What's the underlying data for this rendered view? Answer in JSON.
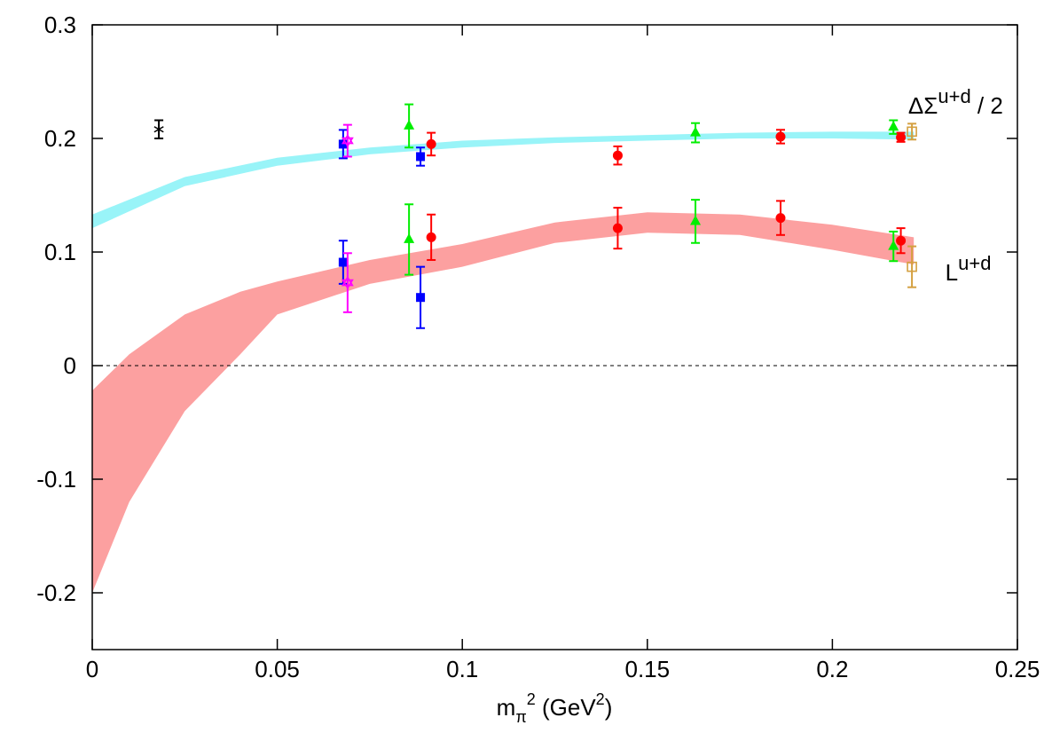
{
  "chart_data": {
    "type": "scatter",
    "title": "",
    "xlabel": {
      "base": "m",
      "sub": "π",
      "sup": "2",
      "rest": " (GeV",
      "rest_sup": "2",
      "close": ")"
    },
    "ylabel": "",
    "xlim": [
      0,
      0.25
    ],
    "ylim": [
      -0.25,
      0.3
    ],
    "xticks": [
      "0",
      "0.05",
      "0.1",
      "0.15",
      "0.2",
      "0.25"
    ],
    "xtick_values": [
      0,
      0.05,
      0.1,
      0.15,
      0.2,
      0.25
    ],
    "yticks": [
      "-0.2",
      "-0.1",
      "0",
      "0.1",
      "0.2",
      "0.3"
    ],
    "ytick_values": [
      -0.2,
      -0.1,
      0,
      0.1,
      0.2,
      0.3
    ],
    "grid": false,
    "zero_line": "dashed",
    "annotations": [
      {
        "id": "dsigma",
        "base": "ΔΣ",
        "sup": "u+d",
        "tail": " / 2",
        "x": 0.2205,
        "y": 0.222
      },
      {
        "id": "l",
        "base": "L",
        "sup": "u+d",
        "tail": "",
        "x": 0.2305,
        "y": 0.075
      }
    ],
    "bands": [
      {
        "quantity": "ΔΣ/2",
        "color": "#99f4f8",
        "x": [
          0,
          0.025,
          0.05,
          0.075,
          0.1,
          0.125,
          0.15,
          0.175,
          0.2,
          0.222
        ],
        "lower": [
          0.121,
          0.158,
          0.176,
          0.186,
          0.192,
          0.196,
          0.198,
          0.2,
          0.2,
          0.199
        ],
        "upper": [
          0.133,
          0.166,
          0.183,
          0.192,
          0.198,
          0.201,
          0.203,
          0.205,
          0.206,
          0.206
        ]
      },
      {
        "quantity": "L",
        "color": "#fca0a0",
        "x": [
          0,
          0.01,
          0.025,
          0.04,
          0.05,
          0.075,
          0.1,
          0.125,
          0.15,
          0.175,
          0.2,
          0.222
        ],
        "lower": [
          -0.2,
          -0.12,
          -0.04,
          0.01,
          0.045,
          0.072,
          0.087,
          0.108,
          0.117,
          0.115,
          0.102,
          0.089
        ],
        "upper": [
          -0.022,
          0.01,
          0.045,
          0.065,
          0.074,
          0.093,
          0.107,
          0.126,
          0.135,
          0.133,
          0.124,
          0.113
        ]
      }
    ],
    "series": [
      {
        "marker": "star",
        "color": "#000000",
        "points": [
          {
            "x": 0.018,
            "y": 0.208,
            "err": 0.008
          }
        ]
      },
      {
        "marker": "square",
        "color": "#0000ff",
        "points": [
          {
            "x": 0.0678,
            "y": 0.195,
            "err": 0.0125
          },
          {
            "x": 0.0887,
            "y": 0.184,
            "err": 0.008
          },
          {
            "x": 0.0678,
            "y": 0.091,
            "err": 0.019
          },
          {
            "x": 0.0887,
            "y": 0.06,
            "err": 0.027
          }
        ]
      },
      {
        "marker": "hexagram",
        "color": "#ff00ff",
        "points": [
          {
            "x": 0.069,
            "y": 0.198,
            "err": 0.014
          },
          {
            "x": 0.069,
            "y": 0.073,
            "err": 0.026
          }
        ]
      },
      {
        "marker": "triangle",
        "color": "#00ee00",
        "points": [
          {
            "x": 0.0856,
            "y": 0.211,
            "err": 0.019
          },
          {
            "x": 0.163,
            "y": 0.205,
            "err": 0.0085
          },
          {
            "x": 0.2165,
            "y": 0.21,
            "err": 0.006
          },
          {
            "x": 0.0856,
            "y": 0.111,
            "err": 0.031
          },
          {
            "x": 0.163,
            "y": 0.127,
            "err": 0.019
          },
          {
            "x": 0.2165,
            "y": 0.105,
            "err": 0.013
          }
        ]
      },
      {
        "marker": "circle",
        "color": "#ff0000",
        "points": [
          {
            "x": 0.0916,
            "y": 0.195,
            "err": 0.01
          },
          {
            "x": 0.142,
            "y": 0.185,
            "err": 0.008
          },
          {
            "x": 0.186,
            "y": 0.2016,
            "err": 0.006
          },
          {
            "x": 0.2185,
            "y": 0.201,
            "err": 0.004
          },
          {
            "x": 0.0916,
            "y": 0.113,
            "err": 0.02
          },
          {
            "x": 0.142,
            "y": 0.121,
            "err": 0.018
          },
          {
            "x": 0.186,
            "y": 0.13,
            "err": 0.015
          },
          {
            "x": 0.2185,
            "y": 0.11,
            "err": 0.011
          }
        ]
      },
      {
        "marker": "open-square",
        "color": "#d4a040",
        "points": [
          {
            "x": 0.2215,
            "y": 0.206,
            "err": 0.007
          },
          {
            "x": 0.2215,
            "y": 0.087,
            "err": 0.018
          }
        ]
      }
    ]
  }
}
